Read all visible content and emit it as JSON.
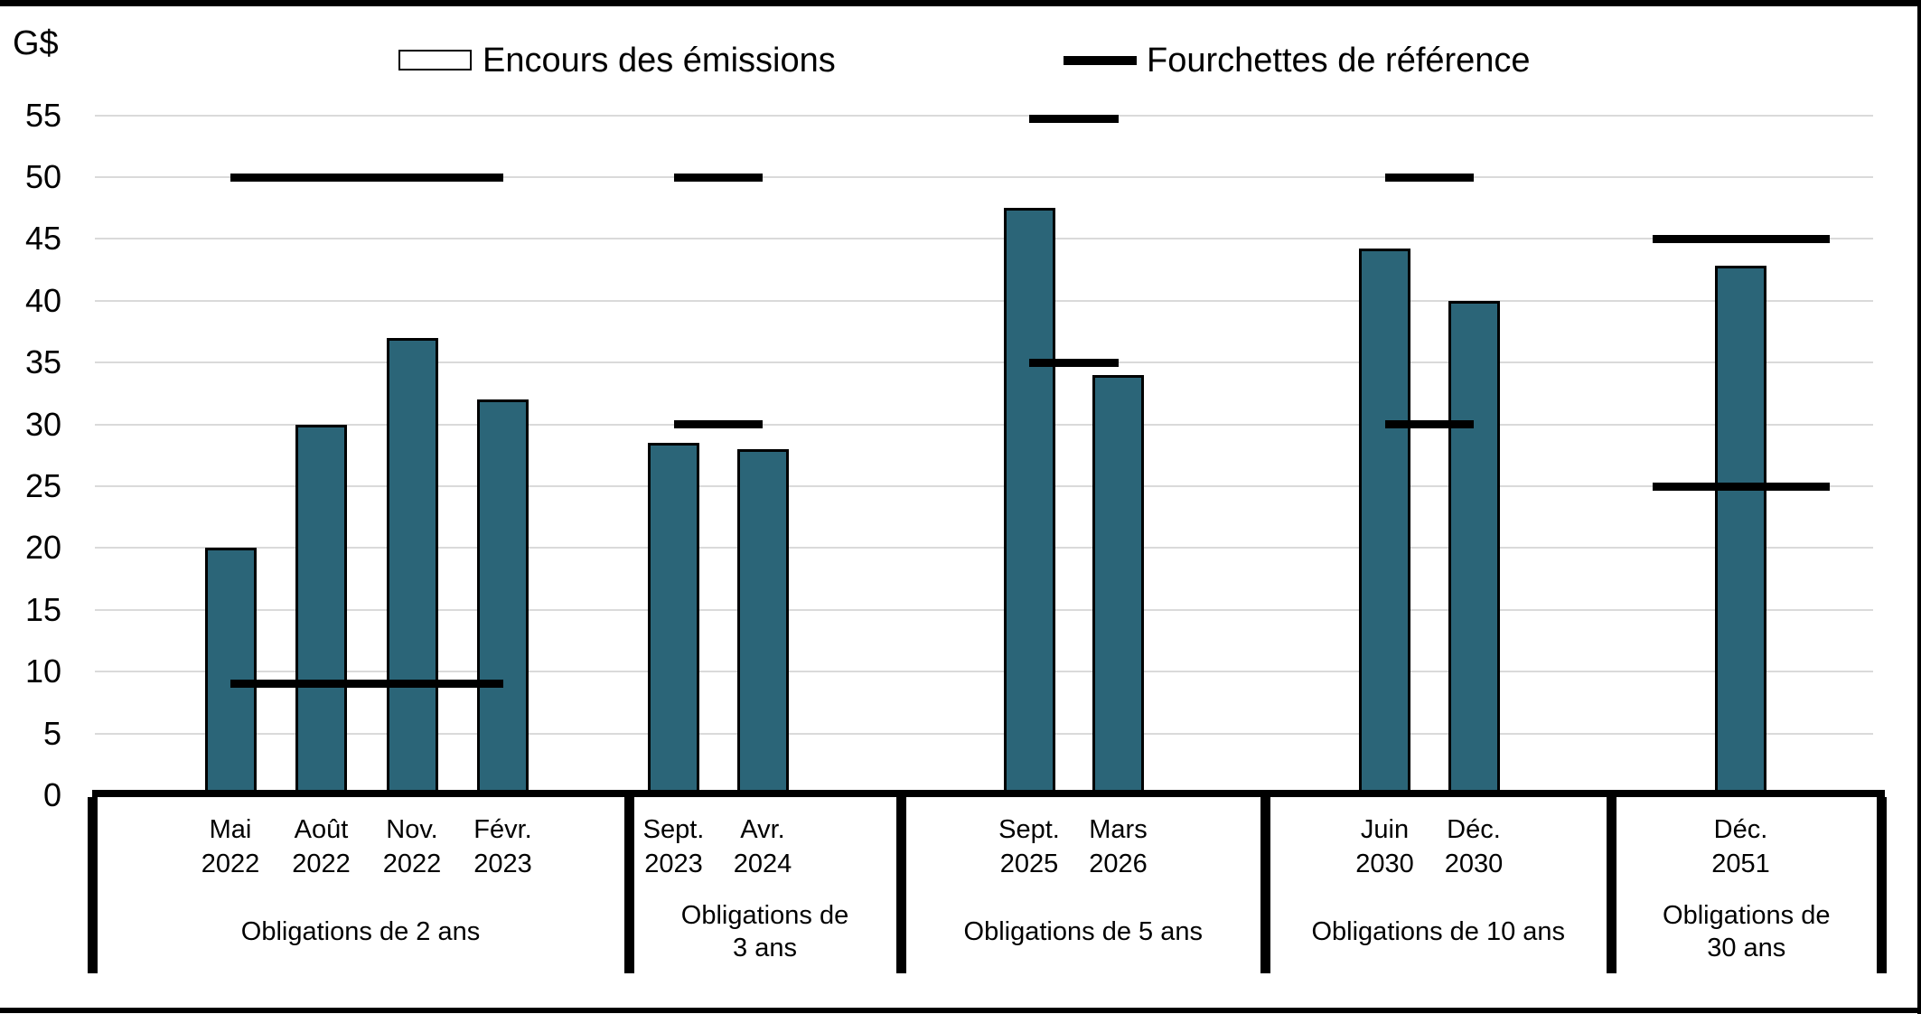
{
  "unit_label": "G$",
  "legend": {
    "emissions_label": "Encours des émissions",
    "reference_label": "Fourchettes de référence"
  },
  "colors": {
    "bar_fill": "#2B6578",
    "bar_border": "#000000",
    "reference_line": "#000000",
    "gridline": "#DADADA"
  },
  "chart_data": {
    "type": "bar",
    "title": "",
    "ylabel": "G$",
    "ylim": [
      0,
      57.5
    ],
    "y_ticks": [
      0,
      5,
      10,
      15,
      20,
      25,
      30,
      35,
      40,
      45,
      50,
      55
    ],
    "grid": true,
    "legend_entries": [
      "Encours des émissions",
      "Fourchettes de référence"
    ],
    "legend_position": "top",
    "groups": [
      {
        "group_label_lines": [
          "Obligations de 2 ans"
        ],
        "bars": [
          {
            "label_lines": [
              "Mai",
              "2022"
            ],
            "value": 20
          },
          {
            "label_lines": [
              "Août",
              "2022"
            ],
            "value": 30
          },
          {
            "label_lines": [
              "Nov.",
              "2022"
            ],
            "value": 37
          },
          {
            "label_lines": [
              "Févr.",
              "2023"
            ],
            "value": 32
          }
        ],
        "reference_range": {
          "low": 9,
          "high": 50
        }
      },
      {
        "group_label_lines": [
          "Obligations de",
          "3 ans"
        ],
        "bars": [
          {
            "label_lines": [
              "Sept.",
              "2023"
            ],
            "value": 28.5
          },
          {
            "label_lines": [
              "Avr.",
              "2024"
            ],
            "value": 28
          }
        ],
        "reference_range": {
          "low": 30,
          "high": 50
        }
      },
      {
        "group_label_lines": [
          "Obligations de 5 ans"
        ],
        "bars": [
          {
            "label_lines": [
              "Sept.",
              "2025"
            ],
            "value": 47.5
          },
          {
            "label_lines": [
              "Mars",
              "2026"
            ],
            "value": 34
          }
        ],
        "reference_range": {
          "low": 35,
          "high": 54.7
        }
      },
      {
        "group_label_lines": [
          "Obligations de 10 ans"
        ],
        "bars": [
          {
            "label_lines": [
              "Juin",
              "2030"
            ],
            "value": 44.2
          },
          {
            "label_lines": [
              "Déc.",
              "2030"
            ],
            "value": 40
          }
        ],
        "reference_range": {
          "low": 30,
          "high": 50
        }
      },
      {
        "group_label_lines": [
          "Obligations de",
          "30 ans"
        ],
        "bars": [
          {
            "label_lines": [
              "Déc.",
              "2051"
            ],
            "value": 42.8
          }
        ],
        "reference_range": {
          "low": 25,
          "high": 45
        }
      }
    ]
  }
}
